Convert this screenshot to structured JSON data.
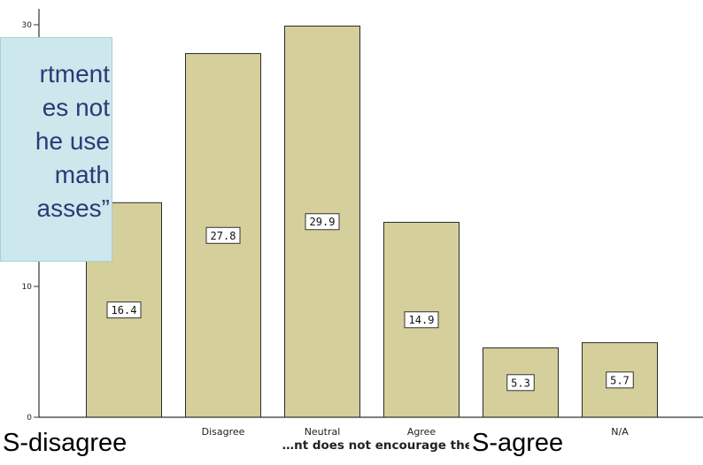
{
  "chart_data": {
    "type": "bar",
    "title": "",
    "xlabel": "…nt does not encourage the us… classes",
    "ylabel": "",
    "categories": [
      "",
      "Disagree",
      "Neutral",
      "Agree",
      "",
      "N/A"
    ],
    "values": [
      16.4,
      27.8,
      29.9,
      14.9,
      5.3,
      5.7
    ],
    "data_labels": [
      "16.4",
      "27.8",
      "29.9",
      "14.9",
      "5.3",
      "5.7"
    ],
    "ylim": [
      0,
      31
    ],
    "yticks": [
      "0",
      "10",
      "30"
    ],
    "grid": false,
    "legend": "none",
    "colors": {
      "bar": "#d5cf9b",
      "bar_edge": "#2b2b2b",
      "axis": "#333333"
    }
  },
  "callout": {
    "lines": "rtment\nes not\nhe use\n math\nasses”"
  },
  "overlay_labels": {
    "strongly_disagree": "S-disagree",
    "strongly_agree": "S-agree"
  }
}
